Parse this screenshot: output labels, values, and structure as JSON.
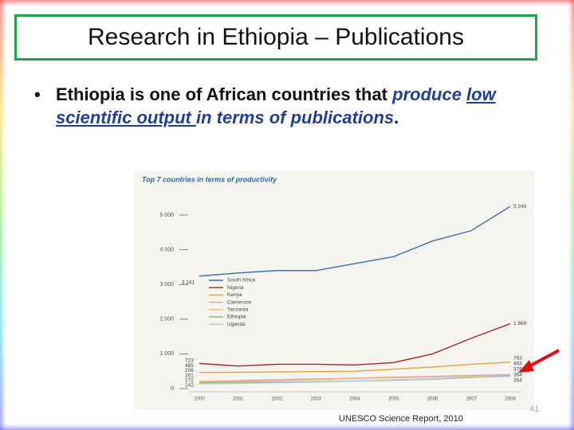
{
  "header": {
    "title": "Research in Ethiopia – Publications"
  },
  "bullet": {
    "parts": [
      "Ethiopia is one of African countries that",
      "produce ",
      "low scientific output ",
      "in terms of publications",
      "."
    ]
  },
  "chart_data": {
    "type": "line",
    "title": "Top 7 countries in terms of productivity",
    "categories": [
      "2000",
      "2001",
      "2002",
      "2003",
      "2004",
      "2005",
      "2006",
      "2007",
      "2008"
    ],
    "ylim": [
      0,
      5000
    ],
    "yticks": [
      0,
      {
        "value": 1000,
        "label": "1 000"
      },
      {
        "value": 2000,
        "label": "2 000"
      },
      {
        "value": 3000,
        "label": "3 000"
      },
      {
        "value": 4000,
        "label": "4 000"
      },
      {
        "value": 5000,
        "label": "5 000"
      }
    ],
    "series": [
      {
        "name": "South Africa",
        "color": "#3a6fb0",
        "values": [
          3241,
          3330,
          3400,
          3400,
          3600,
          3800,
          4250,
          4550,
          5248
        ],
        "value_labels": [
          "3 241",
          null,
          null,
          null,
          null,
          null,
          null,
          null,
          "5 248"
        ]
      },
      {
        "name": "Nigeria",
        "color": "#a3282b",
        "values": [
          723,
          650,
          700,
          700,
          680,
          750,
          1000,
          1450,
          1869
        ],
        "value_labels": [
          "723",
          null,
          null,
          null,
          null,
          null,
          null,
          null,
          "1 869"
        ]
      },
      {
        "name": "Kenya",
        "color": "#e8a23b",
        "values": [
          465,
          470,
          480,
          490,
          500,
          560,
          620,
          700,
          763
        ]
      },
      {
        "name": "Cameroon",
        "color": "#d9a0c0",
        "values": [
          206,
          230,
          260,
          280,
          300,
          330,
          350,
          380,
          403
        ]
      },
      {
        "name": "Tanzania",
        "color": "#f4b67a",
        "values": [
          201,
          210,
          230,
          260,
          290,
          310,
          330,
          360,
          376
        ]
      },
      {
        "name": "Ethiopia",
        "color": "#8cc06b",
        "values": [
          172,
          180,
          190,
          200,
          220,
          240,
          270,
          320,
          364
        ]
      },
      {
        "name": "Uganda",
        "color": "#a9c8e6",
        "values": [
          142,
          150,
          170,
          190,
          220,
          250,
          280,
          330,
          354
        ]
      }
    ]
  },
  "footer": {
    "source": "UNESCO Science Report, 2010",
    "page": "41"
  }
}
